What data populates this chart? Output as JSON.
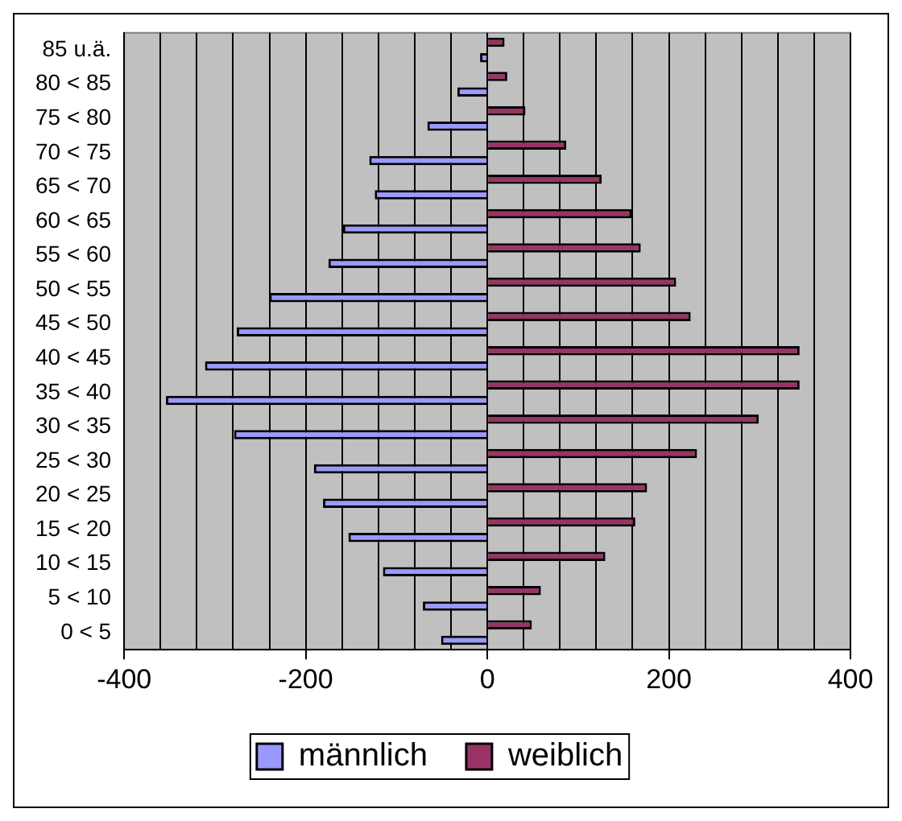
{
  "chart_data": {
    "type": "bar",
    "orientation": "horizontal",
    "categories": [
      "85 u.ä.",
      "80 < 85",
      "75 < 80",
      "70 < 75",
      "65 < 70",
      "60 < 65",
      "55 < 60",
      "50 < 55",
      "45 < 50",
      "40 < 45",
      "35 < 40",
      "30 < 35",
      "25 < 30",
      "20 < 25",
      "15 < 20",
      "10 < 15",
      "5 < 10",
      "0 < 5"
    ],
    "series": [
      {
        "name": "männlich",
        "color": "#9999ff",
        "values": [
          -8,
          -33,
          -66,
          -130,
          -124,
          -159,
          -175,
          -240,
          -276,
          -311,
          -354,
          -279,
          -191,
          -181,
          -153,
          -115,
          -71,
          -51
        ]
      },
      {
        "name": "weiblich",
        "color": "#993366",
        "values": [
          19,
          22,
          42,
          87,
          126,
          159,
          169,
          208,
          224,
          344,
          344,
          299,
          231,
          176,
          163,
          130,
          59,
          49
        ]
      }
    ],
    "xlim": [
      -400,
      400
    ],
    "xticks": [
      -400,
      {
        "value": -360,
        "label": null
      },
      {
        "value": -320,
        "label": null
      },
      {
        "value": -280,
        "label": null
      },
      {
        "value": -240,
        "label": null
      },
      -200,
      {
        "value": -160,
        "label": null
      },
      {
        "value": -120,
        "label": null
      },
      {
        "value": -80,
        "label": null
      },
      {
        "value": -40,
        "label": null
      },
      0,
      {
        "value": 40,
        "label": null
      },
      {
        "value": 80,
        "label": null
      },
      {
        "value": 120,
        "label": null
      },
      {
        "value": 160,
        "label": null
      },
      200,
      {
        "value": 240,
        "label": null
      },
      {
        "value": 280,
        "label": null
      },
      {
        "value": 320,
        "label": null
      },
      {
        "value": 360,
        "label": null
      },
      400
    ],
    "grid": "x",
    "legend": "bottom"
  }
}
